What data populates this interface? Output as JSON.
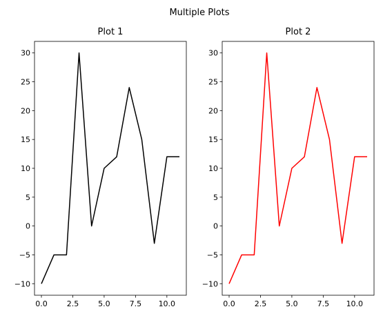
{
  "figure": {
    "title": "Multiple Plots"
  },
  "chart_data": [
    {
      "type": "line",
      "title": "Plot 1",
      "xlabel": "",
      "ylabel": "",
      "color": "#000000",
      "x": [
        0,
        1,
        2,
        3,
        4,
        5,
        6,
        7,
        8,
        9,
        10,
        11
      ],
      "y": [
        -10,
        -5,
        -5,
        30,
        0,
        10,
        12,
        24,
        15,
        -3,
        12,
        12
      ],
      "xlim": [
        -0.55,
        11.55
      ],
      "ylim": [
        -12,
        32
      ],
      "xticks": [
        0,
        2.5,
        5,
        7.5,
        10
      ],
      "xtick_labels": [
        "0.0",
        "2.5",
        "5.0",
        "7.5",
        "10.0"
      ],
      "yticks": [
        -10,
        -5,
        0,
        5,
        10,
        15,
        20,
        25,
        30
      ],
      "ytick_labels": [
        "−10",
        "−5",
        "0",
        "5",
        "10",
        "15",
        "20",
        "25",
        "30"
      ],
      "grid": false
    },
    {
      "type": "line",
      "title": "Plot 2",
      "xlabel": "",
      "ylabel": "",
      "color": "#ff0000",
      "x": [
        0,
        1,
        2,
        3,
        4,
        5,
        6,
        7,
        8,
        9,
        10,
        11
      ],
      "y": [
        -10,
        -5,
        -5,
        30,
        0,
        10,
        12,
        24,
        15,
        -3,
        12,
        12
      ],
      "xlim": [
        -0.55,
        11.55
      ],
      "ylim": [
        -12,
        32
      ],
      "xticks": [
        0,
        2.5,
        5,
        7.5,
        10
      ],
      "xtick_labels": [
        "0.0",
        "2.5",
        "5.0",
        "7.5",
        "10.0"
      ],
      "yticks": [
        -10,
        -5,
        0,
        5,
        10,
        15,
        20,
        25,
        30
      ],
      "ytick_labels": [
        "−10",
        "−5",
        "0",
        "5",
        "10",
        "15",
        "20",
        "25",
        "30"
      ],
      "grid": false
    }
  ]
}
